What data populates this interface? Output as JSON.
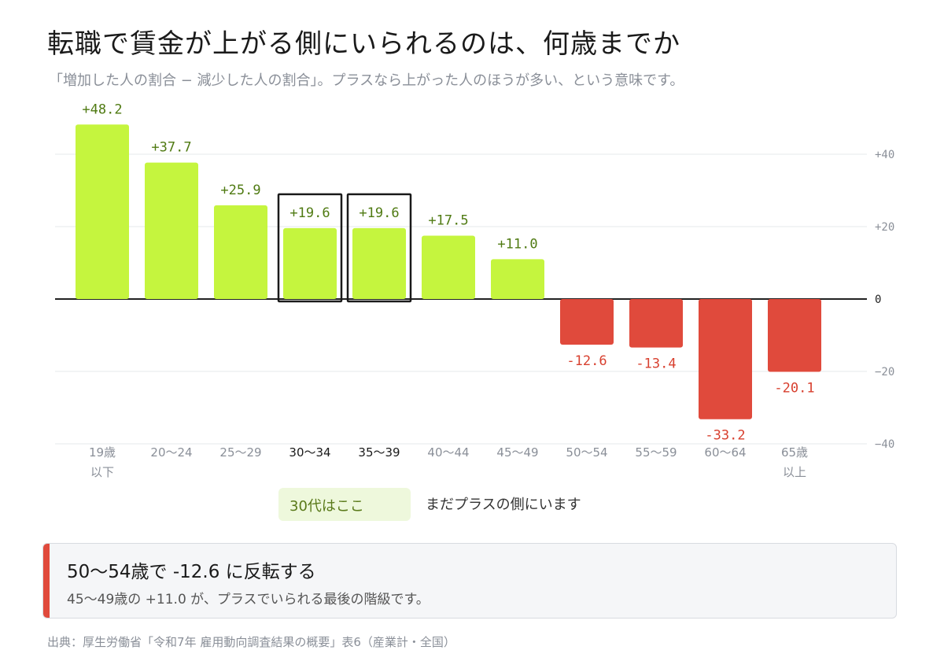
{
  "title": "転職で賃金が上がる側にいられるのは、何歳までか",
  "subtitle": "「増加した人の割合 − 減少した人の割合」。プラスなら上がった人のほうが多い、という意味です。",
  "chart_data": {
    "type": "bar",
    "categories": [
      [
        "19歳",
        "以下"
      ],
      [
        "20〜24"
      ],
      [
        "25〜29"
      ],
      [
        "30〜34"
      ],
      [
        "35〜39"
      ],
      [
        "40〜44"
      ],
      [
        "45〜49"
      ],
      [
        "50〜54"
      ],
      [
        "55〜59"
      ],
      [
        "60〜64"
      ],
      [
        "65歳",
        "以上"
      ]
    ],
    "values": [
      48.2,
      37.7,
      25.9,
      19.6,
      19.6,
      17.5,
      11.0,
      -12.6,
      -13.4,
      -33.2,
      -20.1
    ],
    "value_labels": [
      "+48.2",
      "+37.7",
      "+25.9",
      "+19.6",
      "+19.6",
      "+17.5",
      "+11.0",
      "-12.6",
      "-13.4",
      "-33.2",
      "-20.1"
    ],
    "highlighted_indices": [
      3,
      4
    ],
    "yticks": [
      40,
      20,
      0,
      -20,
      -40
    ],
    "ytick_labels": [
      "+40",
      "+20",
      "0",
      "−20",
      "−40"
    ],
    "ylim": [
      -40,
      48.2
    ],
    "grid": true,
    "colors": {
      "positive": "#c5f53e",
      "negative": "#e04a3c",
      "positive_label": "#4f7a12",
      "negative_label": "#d8402f",
      "highlight_border": "#1a1a1a"
    }
  },
  "legend_note": {
    "chip": "30代はここ",
    "text": "まだプラスの側にいます"
  },
  "callout": {
    "heading": "50〜54歳で -12.6 に反転する",
    "body": "45〜49歳の +11.0 が、プラスでいられる最後の階級です。"
  },
  "source": "出典：厚生労働省「令和7年 雇用動向調査結果の概要」表6（産業計・全国）"
}
